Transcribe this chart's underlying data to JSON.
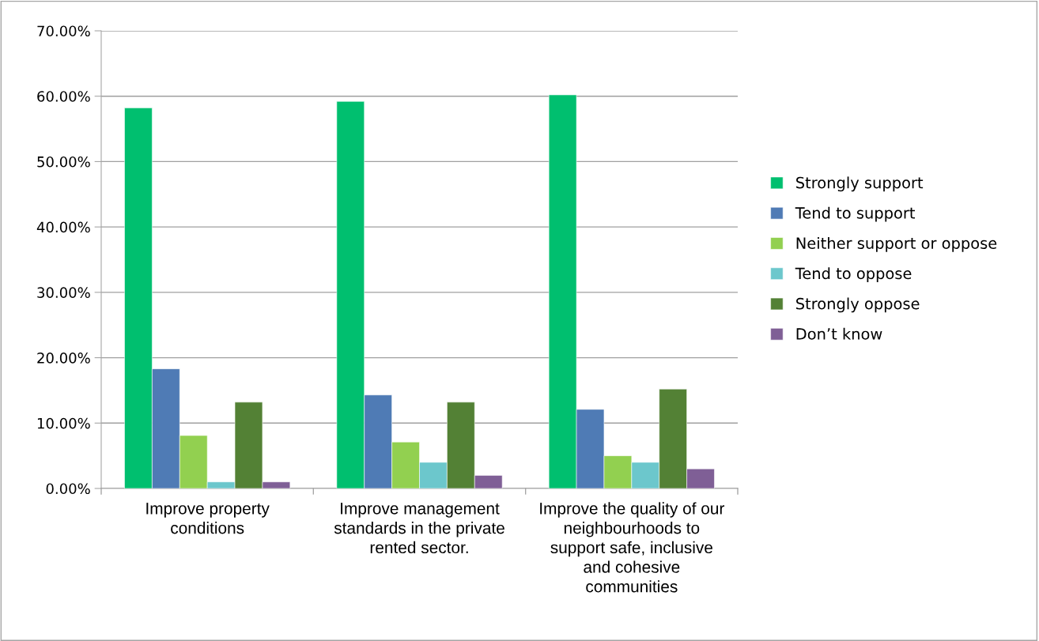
{
  "chart_data": {
    "type": "bar",
    "categories": [
      "Improve property conditions",
      "Improve management standards in the private rented sector.",
      "Improve the quality of our neighbourhoods to support safe, inclusive and cohesive communities"
    ],
    "series": [
      {
        "name": "Strongly support",
        "color": "#00bf6f",
        "values": [
          58.2,
          59.2,
          60.2
        ]
      },
      {
        "name": "Tend to support",
        "color": "#4f7bb5",
        "values": [
          18.3,
          14.3,
          12.1
        ]
      },
      {
        "name": "Neither support or oppose",
        "color": "#92d050",
        "values": [
          8.1,
          7.1,
          5.0
        ]
      },
      {
        "name": "Tend to oppose",
        "color": "#6cc7cc",
        "values": [
          1.0,
          4.0,
          4.0
        ]
      },
      {
        "name": "Strongly oppose",
        "color": "#538135",
        "values": [
          13.2,
          13.2,
          15.2
        ]
      },
      {
        "name": "Don’t know",
        "color": "#7f5f96",
        "values": [
          1.0,
          2.0,
          3.0
        ]
      }
    ],
    "ylim": [
      0,
      70
    ],
    "yticks": [
      {
        "value": 0,
        "label": "0.00%"
      },
      {
        "value": 10,
        "label": "10.00%"
      },
      {
        "value": 20,
        "label": "20.00%"
      },
      {
        "value": 30,
        "label": "30.00%"
      },
      {
        "value": 40,
        "label": "40.00%"
      },
      {
        "value": 50,
        "label": "50.00%"
      },
      {
        "value": 60,
        "label": "60.00%"
      },
      {
        "value": 70,
        "label": "70.00%"
      }
    ],
    "grid": "y",
    "legend": "right"
  }
}
